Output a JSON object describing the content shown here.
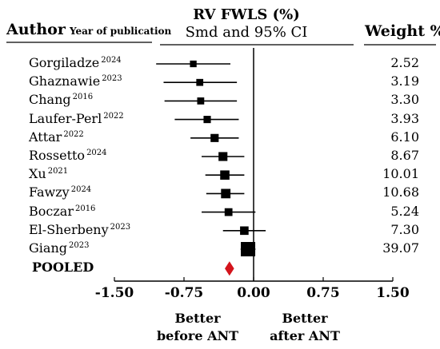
{
  "header": {
    "author_label": "Author",
    "year_label": "Year of publication",
    "weight_label": "Weight %"
  },
  "chart_data": {
    "type": "forest",
    "title": "RV FWLS (%)",
    "subtitle": "Smd and 95% CI",
    "xlim": [
      -1.5,
      1.5
    ],
    "ticks": [
      -1.5,
      -0.75,
      0.0,
      0.75,
      1.5
    ],
    "tick_labels": [
      "-1.50",
      "-0.75",
      "0.00",
      "0.75",
      "1.50"
    ],
    "studies": [
      {
        "author": "Gorgiladze",
        "year": "2024",
        "smd": -0.65,
        "ci": [
          -1.05,
          -0.25
        ],
        "weight": "2.52",
        "w": 2.52
      },
      {
        "author": "Ghaznawie",
        "year": "2023",
        "smd": -0.58,
        "ci": [
          -0.97,
          -0.18
        ],
        "weight": "3.19",
        "w": 3.19
      },
      {
        "author": "Chang",
        "year": "2016",
        "smd": -0.57,
        "ci": [
          -0.96,
          -0.18
        ],
        "weight": "3.30",
        "w": 3.3
      },
      {
        "author": "Laufer-Perl",
        "year": "2022",
        "smd": -0.5,
        "ci": [
          -0.85,
          -0.16
        ],
        "weight": "3.93",
        "w": 3.93
      },
      {
        "author": "Attar",
        "year": "2022",
        "smd": -0.42,
        "ci": [
          -0.68,
          -0.16
        ],
        "weight": "6.10",
        "w": 6.1
      },
      {
        "author": "Rossetto",
        "year": "2024",
        "smd": -0.33,
        "ci": [
          -0.56,
          -0.1
        ],
        "weight": "8.67",
        "w": 8.67
      },
      {
        "author": "Xu",
        "year": "2021",
        "smd": -0.31,
        "ci": [
          -0.52,
          -0.1
        ],
        "weight": "10.01",
        "w": 10.01
      },
      {
        "author": "Fawzy",
        "year": "2024",
        "smd": -0.3,
        "ci": [
          -0.51,
          -0.1
        ],
        "weight": "10.68",
        "w": 10.68
      },
      {
        "author": "Boczar",
        "year": "2016",
        "smd": -0.27,
        "ci": [
          -0.56,
          0.02
        ],
        "weight": "5.24",
        "w": 5.24
      },
      {
        "author": "El-Sherbeny",
        "year": "2023",
        "smd": -0.1,
        "ci": [
          -0.33,
          0.13
        ],
        "weight": "7.30",
        "w": 7.3
      },
      {
        "author": "Giang",
        "year": "2023",
        "smd": -0.06,
        "ci": [
          -0.14,
          0.02
        ],
        "weight": "39.07",
        "w": 39.07
      }
    ],
    "pooled": {
      "label": "POOLED",
      "smd": -0.26,
      "ci": [
        -0.31,
        -0.21
      ]
    },
    "annotations": {
      "left": [
        "Better",
        "before ANT"
      ],
      "right": [
        "Better",
        "after ANT"
      ]
    },
    "colors": {
      "marker": "#000000",
      "pooled": "#d4141c"
    }
  }
}
